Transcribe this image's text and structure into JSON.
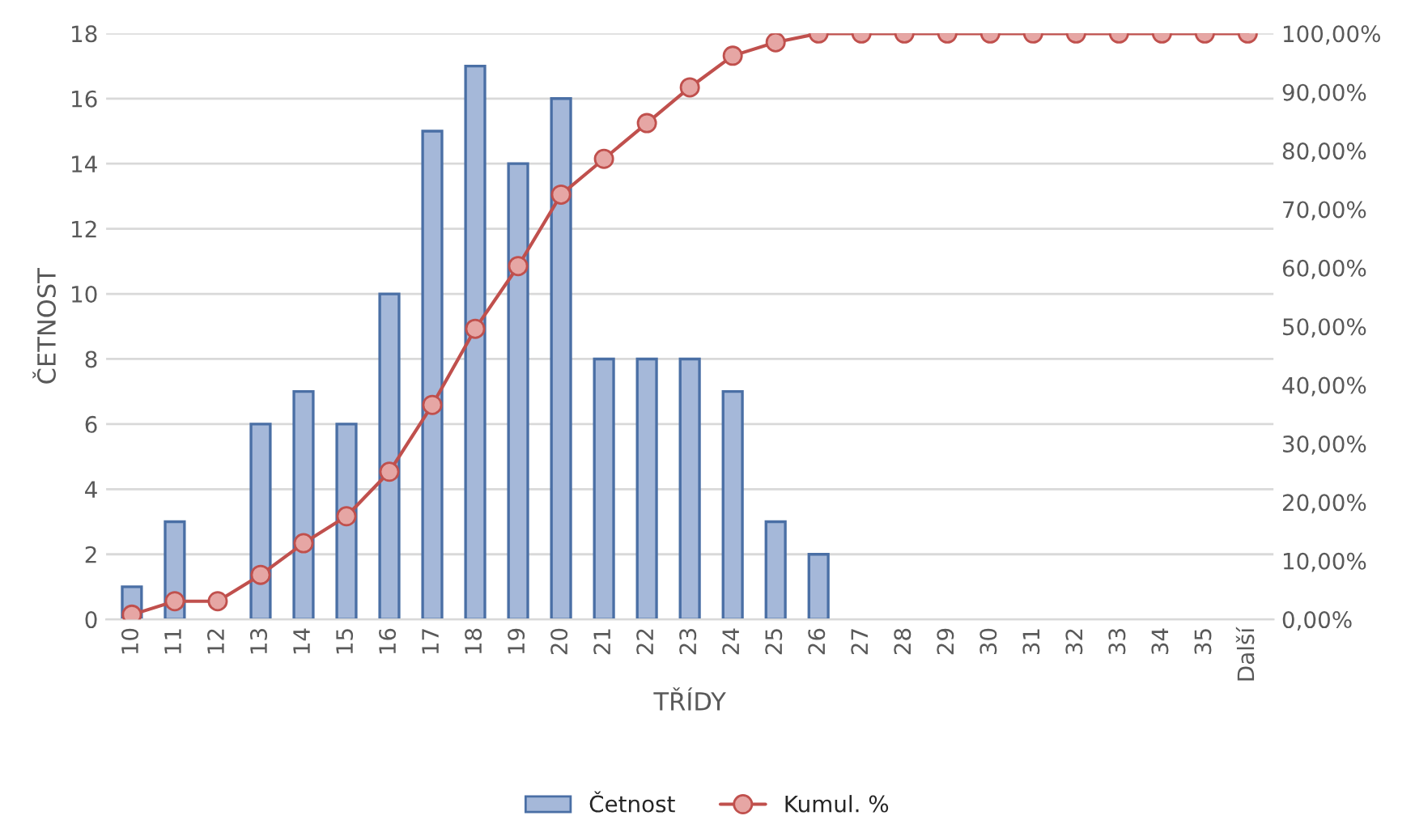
{
  "chart_data": {
    "type": "bar",
    "xlabel": "TŘÍDY",
    "ylabel": "ČETNOST",
    "categories": [
      "10",
      "11",
      "12",
      "13",
      "14",
      "15",
      "16",
      "17",
      "18",
      "19",
      "20",
      "21",
      "22",
      "23",
      "24",
      "25",
      "26",
      "27",
      "28",
      "29",
      "30",
      "31",
      "32",
      "33",
      "34",
      "35",
      "Další"
    ],
    "series": [
      {
        "name": "Četnost",
        "color": "#a5b8d9",
        "values": [
          1,
          3,
          0,
          6,
          7,
          6,
          10,
          15,
          17,
          14,
          16,
          8,
          8,
          8,
          7,
          3,
          2,
          0,
          0,
          0,
          0,
          0,
          0,
          0,
          0,
          0,
          0
        ]
      },
      {
        "name": "Kumul. %",
        "type": "line",
        "axis": "y2",
        "color": "#c0504d",
        "marker": "circle",
        "values": [
          0.8,
          3.1,
          3.1,
          7.6,
          13.0,
          17.6,
          25.2,
          36.6,
          49.6,
          60.3,
          72.5,
          78.6,
          84.7,
          90.8,
          96.2,
          98.5,
          100,
          100,
          100,
          100,
          100,
          100,
          100,
          100,
          100,
          100,
          100
        ]
      }
    ],
    "ylim": [
      0,
      18
    ],
    "yticks": [
      0,
      2,
      4,
      6,
      8,
      10,
      12,
      14,
      16,
      18
    ],
    "y2lim": [
      0,
      100
    ],
    "y2ticks": [
      {
        "value": 0,
        "label": "0,00%"
      },
      {
        "value": 10,
        "label": "10,00%"
      },
      {
        "value": 20,
        "label": "20,00%"
      },
      {
        "value": 30,
        "label": "30,00%"
      },
      {
        "value": 40,
        "label": "40,00%"
      },
      {
        "value": 50,
        "label": "50,00%"
      },
      {
        "value": 60,
        "label": "60,00%"
      },
      {
        "value": 70,
        "label": "70,00%"
      },
      {
        "value": 80,
        "label": "80,00%"
      },
      {
        "value": 90,
        "label": "90,00%"
      },
      {
        "value": 100,
        "label": "100,00%"
      }
    ],
    "grid": "y",
    "legend": "bottom"
  }
}
